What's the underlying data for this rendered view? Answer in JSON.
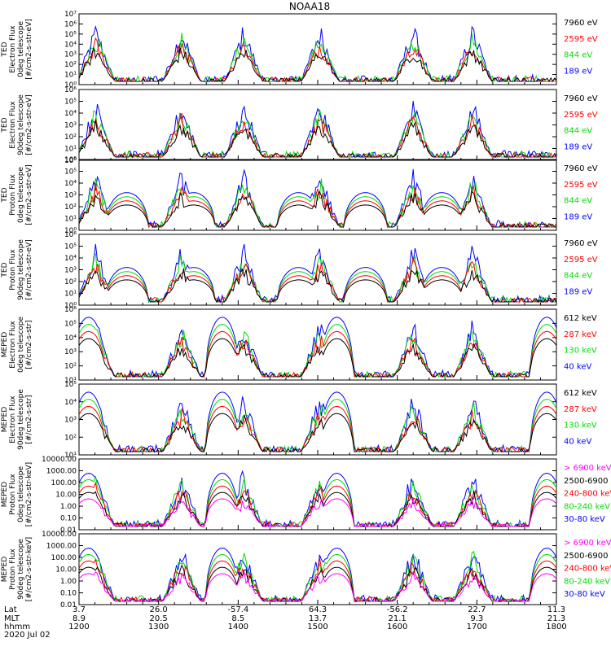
{
  "title": "NOAA18",
  "chart_data": {
    "type": "line",
    "title": "NOAA18",
    "xrange": [
      "1200",
      "1800"
    ],
    "x_ticks": [
      "1200",
      "1300",
      "1400",
      "1500",
      "1600",
      "1700",
      "1800"
    ],
    "footer": {
      "row_labels": [
        "Lat",
        "MLT",
        "hhmm"
      ],
      "date": "2020 Jul 02",
      "columns": [
        {
          "lat": "3.7",
          "mlt": "8.9",
          "hhmm": "1200"
        },
        {
          "lat": "26.0",
          "mlt": "20.5",
          "hhmm": "1300"
        },
        {
          "lat": "-57.4",
          "mlt": "8.5",
          "hhmm": "1400"
        },
        {
          "lat": "64.3",
          "mlt": "13.7",
          "hhmm": "1500"
        },
        {
          "lat": "-56.2",
          "mlt": "21.1",
          "hhmm": "1600"
        },
        {
          "lat": "22.7",
          "mlt": "9.3",
          "hhmm": "1700"
        },
        {
          "lat": "11.3",
          "mlt": "21.3",
          "hhmm": "1800"
        }
      ]
    },
    "panels": [
      {
        "ylabel": [
          "TED",
          "Electron Flux",
          "0deg telescope",
          "[#/cm2-s-str-eV]"
        ],
        "yaxis": "log",
        "ymin_exp": 0,
        "ymax_exp": 7,
        "ticks": [
          "10⁰",
          "10¹",
          "10²",
          "10³",
          "10⁴",
          "10⁵",
          "10⁶",
          "10⁷"
        ],
        "kind": "ted_e",
        "legend": [
          {
            "text": "7960 eV",
            "color": "#000000"
          },
          {
            "text": "2595 eV",
            "color": "#ff0000"
          },
          {
            "text": "844 eV",
            "color": "#00dd00"
          },
          {
            "text": "189 eV",
            "color": "#0000ff"
          }
        ]
      },
      {
        "ylabel": [
          "TED",
          "Electron Flux",
          "90deg telescope",
          "[#/cm2-s-str-eV]"
        ],
        "yaxis": "log",
        "ymin_exp": 0,
        "ymax_exp": 6,
        "ticks": [
          "10⁰",
          "10¹",
          "10²",
          "10³",
          "10⁴",
          "10⁵",
          "10⁶"
        ],
        "kind": "ted_e",
        "legend": [
          {
            "text": "7960 eV",
            "color": "#000000"
          },
          {
            "text": "2595 eV",
            "color": "#ff0000"
          },
          {
            "text": "844 eV",
            "color": "#00dd00"
          },
          {
            "text": "189 eV",
            "color": "#0000ff"
          }
        ]
      },
      {
        "ylabel": [
          "TED",
          "Proton Flux",
          "0deg telescope",
          "[#/cm2-s-str-eV]"
        ],
        "yaxis": "log",
        "ymin_exp": 0,
        "ymax_exp": 6,
        "ticks": [
          "10⁰",
          "10¹",
          "10²",
          "10³",
          "10⁴",
          "10⁵",
          "10⁶"
        ],
        "kind": "ted_p",
        "legend": [
          {
            "text": "7960 eV",
            "color": "#000000"
          },
          {
            "text": "2595 eV",
            "color": "#ff0000"
          },
          {
            "text": "844 eV",
            "color": "#00dd00"
          },
          {
            "text": "189 eV",
            "color": "#0000ff"
          }
        ]
      },
      {
        "ylabel": [
          "TED",
          "Proton Flux",
          "90deg telescope",
          "[#/cm2-s-str-eV]"
        ],
        "yaxis": "log",
        "ymin_exp": 0,
        "ymax_exp": 6,
        "ticks": [
          "10⁰",
          "10¹",
          "10²",
          "10³",
          "10⁴",
          "10⁵",
          "10⁶"
        ],
        "kind": "ted_p90",
        "legend": [
          {
            "text": "7960 eV",
            "color": "#000000"
          },
          {
            "text": "2595 eV",
            "color": "#ff0000"
          },
          {
            "text": "844 eV",
            "color": "#00dd00"
          },
          {
            "text": "189 eV",
            "color": "#0000ff"
          }
        ]
      },
      {
        "ylabel": [
          "MEPED",
          "Electron Flux",
          "0deg telescope",
          "[#/cm2-s-str]"
        ],
        "yaxis": "log",
        "ymin_exp": 1,
        "ymax_exp": 6,
        "ticks": [
          "10¹",
          "10²",
          "10³",
          "10⁴",
          "10⁵",
          "10⁶"
        ],
        "kind": "meped_e0",
        "legend": [
          {
            "text": "612 keV",
            "color": "#000000"
          },
          {
            "text": "287 keV",
            "color": "#ff0000"
          },
          {
            "text": "130 keV",
            "color": "#00dd00"
          },
          {
            "text": "40 keV",
            "color": "#0000ff"
          }
        ]
      },
      {
        "ylabel": [
          "MEPED",
          "Electron Flux",
          "90deg telescope",
          "[#/cm2-s-str]"
        ],
        "yaxis": "log",
        "ymin_exp": 1,
        "ymax_exp": 5,
        "ticks": [
          "10¹",
          "10²",
          "10³",
          "10⁴",
          "10⁵"
        ],
        "kind": "meped_e90",
        "legend": [
          {
            "text": "612 keV",
            "color": "#000000"
          },
          {
            "text": "287 keV",
            "color": "#ff0000"
          },
          {
            "text": "130 keV",
            "color": "#00dd00"
          },
          {
            "text": "40 keV",
            "color": "#0000ff"
          }
        ]
      },
      {
        "ylabel": [
          "MEPED",
          "Proton Flux",
          "0deg telescope",
          "[#/cm2-s-str-keV]"
        ],
        "yaxis": "log",
        "ymin_exp": -2,
        "ymax_exp": 4,
        "ticks": [
          "0.01",
          "0.10",
          "1.00",
          "10.00",
          "100.00",
          "1000.00",
          "10000.00"
        ],
        "kind": "meped_p",
        "legend": [
          {
            "text": "> 6900 keV",
            "color": "#ff00ff"
          },
          {
            "text": "2500-6900",
            "color": "#000000"
          },
          {
            "text": "240-800 keV",
            "color": "#ff0000"
          },
          {
            "text": "80-240 keV",
            "color": "#00dd00"
          },
          {
            "text": "30-80 keV",
            "color": "#0000ff"
          }
        ]
      },
      {
        "ylabel": [
          "MEPED",
          "Proton Flux",
          "90deg telescope",
          "[#/cm2-s-str-keV]"
        ],
        "yaxis": "log",
        "ymin_exp": -2,
        "ymax_exp": 4,
        "ticks": [
          "0.01",
          "0.10",
          "1.00",
          "10.00",
          "100.00",
          "1000.00",
          "10000.00"
        ],
        "kind": "meped_p",
        "legend": [
          {
            "text": "> 6900 keV",
            "color": "#ff00ff"
          },
          {
            "text": "2500-6900",
            "color": "#000000"
          },
          {
            "text": "240-800 keV",
            "color": "#ff0000"
          },
          {
            "text": "80-240 keV",
            "color": "#00dd00"
          },
          {
            "text": "30-80 keV",
            "color": "#0000ff"
          }
        ]
      }
    ]
  }
}
